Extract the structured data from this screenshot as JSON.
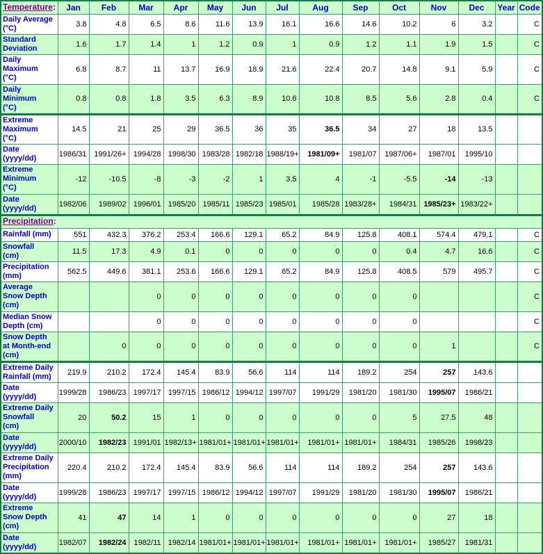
{
  "colors": {
    "row_green": "#ccffcc",
    "row_white": "#ffffff",
    "border_thin": "#3d9970",
    "border_thick": "#117a45",
    "label_blue": "#0000cc",
    "link_purple": "#800080",
    "text_black": "#000000"
  },
  "table": {
    "header": {
      "title": "Temperature",
      "colon": ":",
      "months": [
        "Jan",
        "Feb",
        "Mar",
        "Apr",
        "May",
        "Jun",
        "Jul",
        "Aug",
        "Sep",
        "Oct",
        "Nov",
        "Dec"
      ],
      "year": "Year",
      "code": "Code"
    },
    "rows": [
      {
        "label": "Daily Average\n(°C)",
        "values": [
          "3.8",
          "4.8",
          "6.5",
          "8.6",
          "11.6",
          "13.9",
          "16.1",
          "16.6",
          "14.6",
          "10.2",
          "6",
          "3.2"
        ],
        "year": "",
        "code": "C",
        "green": false,
        "thick_top": false,
        "bold_col": null
      },
      {
        "label": "Standard\nDeviation",
        "values": [
          "1.6",
          "1.7",
          "1.4",
          "1",
          "1.2",
          "0.9",
          "1",
          "0.9",
          "1.2",
          "1.1",
          "1.9",
          "1.5"
        ],
        "year": "",
        "code": "C",
        "green": true,
        "thick_top": false,
        "bold_col": null
      },
      {
        "label": "Daily\nMaximum\n(°C)",
        "values": [
          "6.8",
          "8.7",
          "11",
          "13.7",
          "16.9",
          "18.9",
          "21.6",
          "22.4",
          "20.7",
          "14.8",
          "9.1",
          "5.9"
        ],
        "year": "",
        "code": "C",
        "green": false,
        "thick_top": false,
        "bold_col": null
      },
      {
        "label": "Daily\nMinimum\n(°C)",
        "values": [
          "0.8",
          "0.8",
          "1.8",
          "3.5",
          "6.3",
          "8.9",
          "10.6",
          "10.8",
          "8.5",
          "5.6",
          "2.8",
          "0.4"
        ],
        "year": "",
        "code": "C",
        "green": true,
        "thick_top": false,
        "bold_col": null
      },
      {
        "label": "Extreme\nMaximum\n(°C)",
        "values": [
          "14.5",
          "21",
          "25",
          "29",
          "36.5",
          "36",
          "35",
          "36.5",
          "34",
          "27",
          "18",
          "13.5"
        ],
        "year": "",
        "code": "",
        "green": false,
        "thick_top": true,
        "bold_col": 7
      },
      {
        "label": "Date\n(yyyy/dd)",
        "values": [
          "1986/31",
          "1991/26+",
          "1994/28",
          "1998/30",
          "1983/28",
          "1982/18",
          "1988/19+",
          "1981/09+",
          "1981/07",
          "1987/06+",
          "1987/01",
          "1995/10"
        ],
        "year": "",
        "code": "",
        "green": false,
        "thick_top": false,
        "bold_col": 7
      },
      {
        "label": "Extreme\nMinimum\n(°C)",
        "values": [
          "-12",
          "-10.5",
          "-8",
          "-3",
          "-2",
          "1",
          "3.5",
          "4",
          "-1",
          "-5.5",
          "-14",
          "-13"
        ],
        "year": "",
        "code": "",
        "green": true,
        "thick_top": false,
        "bold_col": 10
      },
      {
        "label": "Date\n(yyyy/dd)",
        "values": [
          "1982/06",
          "1989/02",
          "1996/01",
          "1985/20",
          "1985/11",
          "1985/23",
          "1985/01",
          "1985/28",
          "1983/28+",
          "1984/31",
          "1985/23+",
          "1983/22+"
        ],
        "year": "",
        "code": "",
        "green": true,
        "thick_top": false,
        "bold_col": 10
      },
      {
        "type": "section",
        "label": "Precipitation",
        "colon": ":",
        "green": true,
        "thick_top": true
      },
      {
        "label": "Rainfall (mm)",
        "values": [
          "551",
          "432.3",
          "376.2",
          "253.4",
          "166.6",
          "129.1",
          "65.2",
          "84.9",
          "125.8",
          "408.1",
          "574.4",
          "479.1"
        ],
        "year": "",
        "code": "C",
        "green": false,
        "thick_top": false,
        "bold_col": null
      },
      {
        "label": "Snowfall\n(cm)",
        "values": [
          "11.5",
          "17.3",
          "4.9",
          "0.1",
          "0",
          "0",
          "0",
          "0",
          "0",
          "0.4",
          "4.7",
          "16.6"
        ],
        "year": "",
        "code": "C",
        "green": true,
        "thick_top": false,
        "bold_col": null
      },
      {
        "label": "Precipitation\n(mm)",
        "values": [
          "562.5",
          "449.6",
          "381.1",
          "253.6",
          "166.6",
          "129.1",
          "65.2",
          "84.9",
          "125.8",
          "408.5",
          "579",
          "495.7"
        ],
        "year": "",
        "code": "C",
        "green": false,
        "thick_top": false,
        "bold_col": null
      },
      {
        "label": "Average\nSnow Depth\n(cm)",
        "values": [
          "",
          "",
          "0",
          "0",
          "0",
          "0",
          "0",
          "0",
          "0",
          "0",
          "",
          ""
        ],
        "year": "",
        "code": "C",
        "green": true,
        "thick_top": false,
        "bold_col": null
      },
      {
        "label": "Median Snow\nDepth (cm)",
        "values": [
          "",
          "",
          "0",
          "0",
          "0",
          "0",
          "0",
          "0",
          "0",
          "0",
          "",
          ""
        ],
        "year": "",
        "code": "C",
        "green": false,
        "thick_top": false,
        "bold_col": null
      },
      {
        "label": "Snow Depth\nat Month-end\n(cm)",
        "values": [
          "",
          "0",
          "0",
          "0",
          "0",
          "0",
          "0",
          "0",
          "0",
          "0",
          "1",
          ""
        ],
        "year": "",
        "code": "C",
        "green": true,
        "thick_top": false,
        "bold_col": null
      },
      {
        "label": "Extreme Daily\nRainfall (mm)",
        "values": [
          "219.9",
          "210.2",
          "172.4",
          "145.4",
          "83.9",
          "56.6",
          "114",
          "114",
          "189.2",
          "254",
          "257",
          "143.6"
        ],
        "year": "",
        "code": "",
        "green": false,
        "thick_top": true,
        "bold_col": 10
      },
      {
        "label": "Date\n(yyyy/dd)",
        "values": [
          "1999/28",
          "1986/23",
          "1997/17",
          "1997/15",
          "1986/12",
          "1994/12",
          "1997/07",
          "1991/29",
          "1981/20",
          "1981/30",
          "1995/07",
          "1986/21"
        ],
        "year": "",
        "code": "",
        "green": false,
        "thick_top": false,
        "bold_col": 10
      },
      {
        "label": "Extreme Daily\nSnowfall\n(cm)",
        "values": [
          "20",
          "50.2",
          "15",
          "1",
          "0",
          "0",
          "0",
          "0",
          "0",
          "5",
          "27.5",
          "48"
        ],
        "year": "",
        "code": "",
        "green": true,
        "thick_top": false,
        "bold_col": 1
      },
      {
        "label": "Date\n(yyyy/dd)",
        "values": [
          "2000/10",
          "1982/23",
          "1991/01",
          "1982/13+",
          "1981/01+",
          "1981/01+",
          "1981/01+",
          "1981/01+",
          "1981/01+",
          "1984/31",
          "1985/26",
          "1998/23"
        ],
        "year": "",
        "code": "",
        "green": true,
        "thick_top": false,
        "bold_col": 1
      },
      {
        "label": "Extreme Daily\nPrecipitation\n(mm)",
        "values": [
          "220.4",
          "210.2",
          "172.4",
          "145.4",
          "83.9",
          "56.6",
          "114",
          "114",
          "189.2",
          "254",
          "257",
          "143.6"
        ],
        "year": "",
        "code": "",
        "green": false,
        "thick_top": false,
        "bold_col": 10
      },
      {
        "label": "Date\n(yyyy/dd)",
        "values": [
          "1999/28",
          "1986/23",
          "1997/17",
          "1997/15",
          "1986/12",
          "1994/12",
          "1997/07",
          "1991/29",
          "1981/20",
          "1981/30",
          "1995/07",
          "1986/21"
        ],
        "year": "",
        "code": "",
        "green": false,
        "thick_top": false,
        "bold_col": 10
      },
      {
        "label": "Extreme\nSnow Depth\n(cm)",
        "values": [
          "41",
          "47",
          "14",
          "1",
          "0",
          "0",
          "0",
          "0",
          "0",
          "0",
          "27",
          "18"
        ],
        "year": "",
        "code": "",
        "green": true,
        "thick_top": false,
        "bold_col": 1
      },
      {
        "label": "Date\n(yyyy/dd)",
        "values": [
          "1982/07",
          "1982/24",
          "1982/11",
          "1982/14",
          "1981/01+",
          "1981/01+",
          "1981/01+",
          "1981/01+",
          "1981/01+",
          "1981/01+",
          "1985/27",
          "1981/31"
        ],
        "year": "",
        "code": "",
        "green": true,
        "thick_top": false,
        "bold_col": 1
      }
    ]
  }
}
